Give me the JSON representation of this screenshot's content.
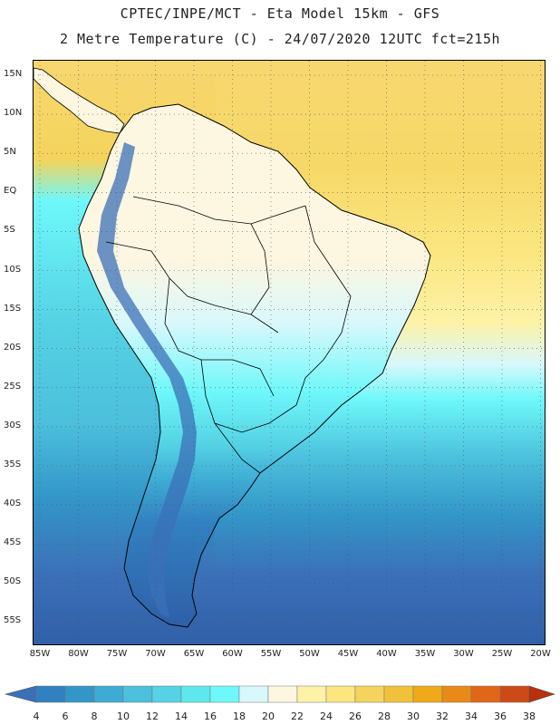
{
  "header": {
    "line1": "CPTEC/INPE/MCT -  Eta Model 15km - GFS",
    "line2": "2 Metre Temperature (C) - 24/07/2020 12UTC fct=215h"
  },
  "map": {
    "lat_labels": [
      "15N",
      "10N",
      "5N",
      "EQ",
      "5S",
      "10S",
      "15S",
      "20S",
      "25S",
      "30S",
      "35S",
      "40S",
      "45S",
      "50S",
      "55S"
    ],
    "lon_labels": [
      "85W",
      "80W",
      "75W",
      "70W",
      "65W",
      "60W",
      "55W",
      "50W",
      "45W",
      "40W",
      "35W",
      "30W",
      "25W",
      "20W"
    ],
    "land_color": "#fdf6e0",
    "ocean_warm_color": "#f7d770",
    "ocean_cool_color": "#4cc8e0",
    "ocean_cold_color": "#3060a8"
  },
  "colorbar": {
    "labels": [
      "4",
      "6",
      "8",
      "10",
      "12",
      "14",
      "16",
      "18",
      "20",
      "22",
      "24",
      "26",
      "28",
      "30",
      "32",
      "34",
      "36",
      "38"
    ],
    "colors": [
      "#3b70b8",
      "#3181c0",
      "#3396c8",
      "#3eabd4",
      "#4cc0dc",
      "#55d2e4",
      "#5ee8ee",
      "#6ef8fa",
      "#d8f8fc",
      "#fdf6e0",
      "#fdf2a8",
      "#fbe680",
      "#f4d45c",
      "#f0c23a",
      "#eeaa18",
      "#e88a18",
      "#e0661a",
      "#cc4a18",
      "#b8300c"
    ]
  }
}
